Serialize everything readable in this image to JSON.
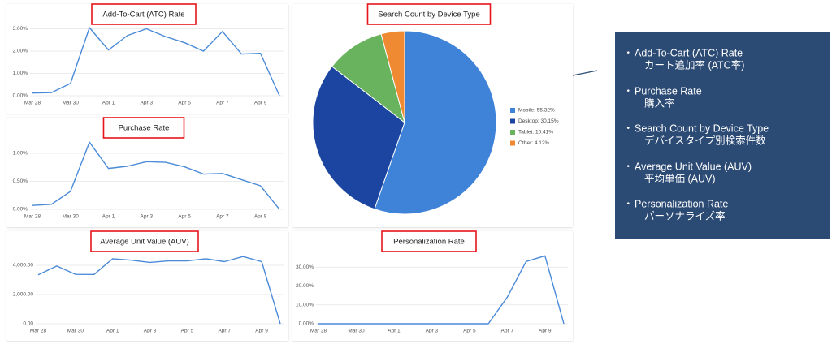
{
  "chart_data": [
    {
      "type": "line",
      "title": "Add-To-Cart (ATC) Rate",
      "color": "#4a8ad8",
      "categories": [
        "Mar 28",
        null,
        "Mar 30",
        null,
        "Apr 1",
        null,
        "Apr 3",
        null,
        "Apr 5",
        null,
        "Apr 7",
        null,
        "Apr 9",
        null
      ],
      "values": [
        0.12,
        0.14,
        0.55,
        3.05,
        2.05,
        2.7,
        3.0,
        2.65,
        2.38,
        2.0,
        2.88,
        1.87,
        1.9,
        0.0
      ],
      "ylim": [
        0,
        3.2
      ],
      "yticks": [
        {
          "value": 0,
          "label": "0.00%"
        },
        {
          "value": 1,
          "label": "1.00%"
        },
        {
          "value": 2,
          "label": "2.00%"
        },
        {
          "value": 3,
          "label": "3.00%"
        }
      ],
      "grid": true
    },
    {
      "type": "line",
      "title": "Purchase Rate",
      "color": "#4a8ad8",
      "categories": [
        "Mar 28",
        null,
        "Mar 30",
        null,
        "Apr 1",
        null,
        "Apr 3",
        null,
        "Apr 5",
        null,
        "Apr 7",
        null,
        "Apr 9",
        null
      ],
      "values": [
        0.07,
        0.09,
        0.32,
        1.2,
        0.73,
        0.77,
        0.85,
        0.84,
        0.76,
        0.63,
        0.64,
        0.53,
        0.42,
        0.0
      ],
      "ylim": [
        0,
        1.3
      ],
      "yticks": [
        {
          "value": 0,
          "label": "0.00%"
        },
        {
          "value": 0.5,
          "label": "0.50%"
        },
        {
          "value": 1,
          "label": "1.00%"
        }
      ],
      "grid": true
    },
    {
      "type": "line",
      "title": "Average Unit Value (AUV)",
      "color": "#4a8ad8",
      "categories": [
        "Mar 28",
        null,
        "Mar 30",
        null,
        "Apr 1",
        null,
        "Apr 3",
        null,
        "Apr 5",
        null,
        "Apr 7",
        null,
        "Apr 9",
        null
      ],
      "values": [
        3350,
        3950,
        3380,
        3370,
        4450,
        4350,
        4200,
        4300,
        4300,
        4450,
        4250,
        4600,
        4250,
        0
      ],
      "ylim": [
        0,
        4800
      ],
      "yticks": [
        {
          "value": 0,
          "label": "0.00"
        },
        {
          "value": 2000,
          "label": "2,000.00"
        },
        {
          "value": 4000,
          "label": "4,000.00"
        }
      ],
      "grid": true
    },
    {
      "type": "line",
      "title": "Personalization Rate",
      "color": "#4a8ad8",
      "categories": [
        "Mar 28",
        null,
        "Mar 30",
        null,
        "Apr 1",
        null,
        "Apr 3",
        null,
        "Apr 5",
        null,
        "Apr 7",
        null,
        "Apr 9",
        null
      ],
      "values": [
        0,
        0,
        0,
        0,
        0,
        0,
        0,
        0,
        0,
        0,
        14,
        33,
        36,
        0
      ],
      "ylim": [
        0,
        37
      ],
      "yticks": [
        {
          "value": 0,
          "label": "0.00%"
        },
        {
          "value": 10,
          "label": "10.00%"
        },
        {
          "value": 20,
          "label": "20.00%"
        },
        {
          "value": 30,
          "label": "30.00%"
        }
      ],
      "grid": true
    },
    {
      "type": "pie",
      "title": "Search Count by Device Type",
      "categories": [
        "Mobile: 55.32%",
        "Desktop: 30.15%",
        "Tablet: 10.41%",
        "Other: 4.12%"
      ],
      "values": [
        55.32,
        30.15,
        10.41,
        4.12
      ],
      "colors": [
        "#3f83d8",
        "#1b45a0",
        "#69b35e",
        "#ef8a33"
      ]
    }
  ],
  "panel": {
    "items": [
      {
        "title": "Add-To-Cart (ATC) Rate",
        "subtitle": "カート追加率 (ATC率)"
      },
      {
        "title": "Purchase Rate",
        "subtitle": "購入率"
      },
      {
        "title": "Search Count by Device Type",
        "subtitle": "デバイスタイプ別検索件数"
      },
      {
        "title": "Average Unit Value (AUV)",
        "subtitle": "平均単価 (AUV)"
      },
      {
        "title": "Personalization Rate",
        "subtitle": "パーソナライズ率"
      }
    ]
  }
}
